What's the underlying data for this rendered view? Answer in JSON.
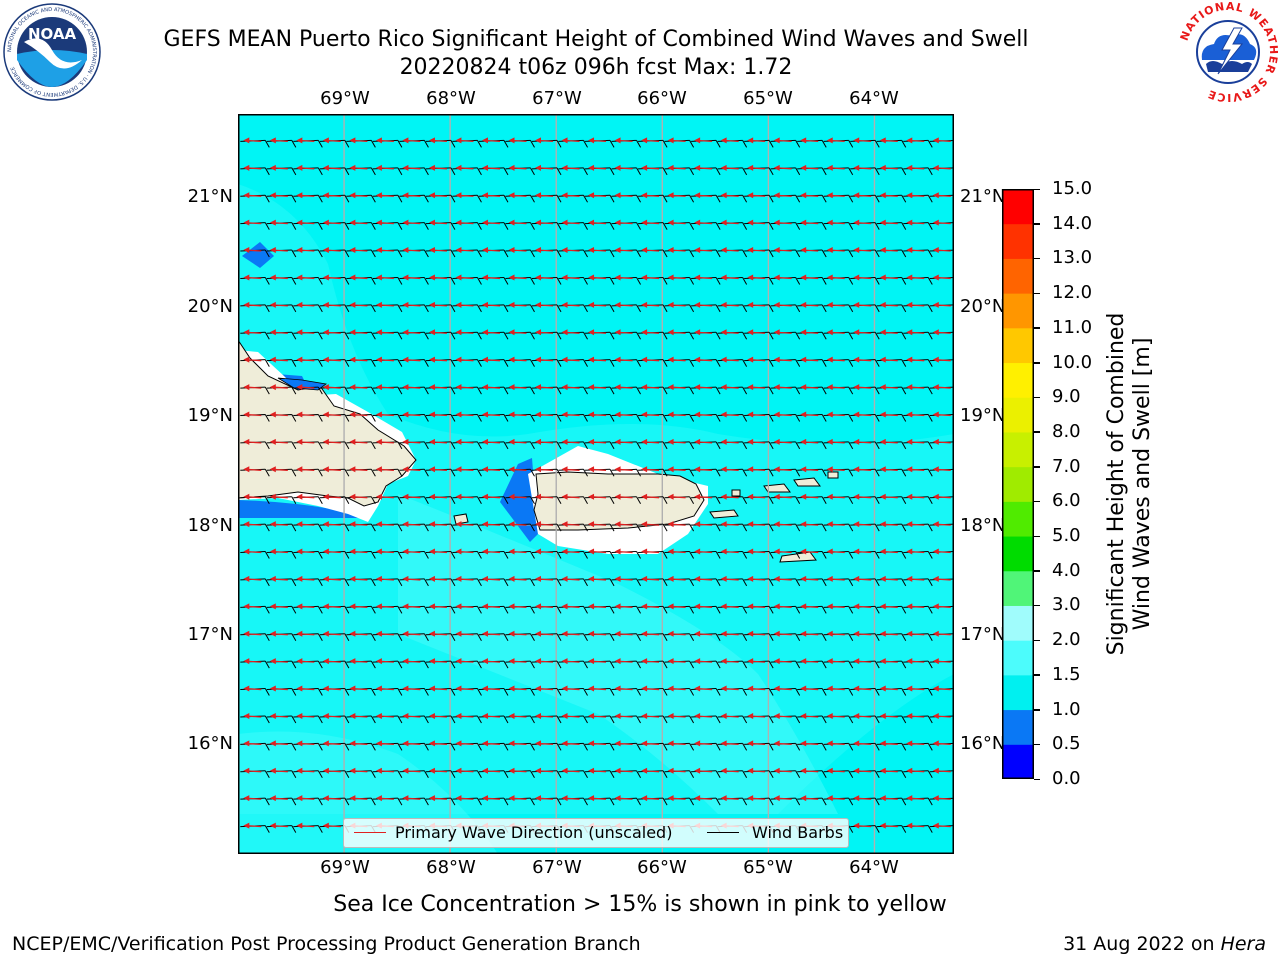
{
  "title": {
    "line1": "GEFS MEAN Puerto Rico Significant Height of Combined Wind Waves and Swell",
    "line2": "20220824 t06z 096h fcst   Max: 1.72"
  },
  "logos": {
    "left": {
      "text": "NOAA",
      "ring_text": "NATIONAL OCEANIC AND ATMOSPHERIC ADMINISTRATION · U.S. DEPARTMENT OF COMMERCE",
      "icon": "noaa-logo-icon"
    },
    "right": {
      "ring_text": "NATIONAL WEATHER SERVICE",
      "icon": "nws-logo-icon"
    }
  },
  "map": {
    "lon_ticks": [
      "69°W",
      "68°W",
      "67°W",
      "66°W",
      "65°W",
      "64°W"
    ],
    "lat_ticks": [
      "21°N",
      "20°N",
      "19°N",
      "18°N",
      "17°N",
      "16°N"
    ],
    "lat_ticks_right": [
      "21°N",
      "20°N",
      "19°N",
      "18°N",
      "17°N",
      "16°N"
    ],
    "lon_values": [
      -69,
      -68,
      -67,
      -66,
      -65,
      -64
    ],
    "lat_values": [
      21,
      20,
      19,
      18,
      17,
      16
    ],
    "extent": {
      "lon_min": -70.0,
      "lon_max": -63.25,
      "lat_min": 15.0,
      "lat_max": 21.75
    },
    "colors": {
      "ocean": "#00f5f5",
      "light": "#4cfcfc",
      "land": "#efedd9",
      "grid": "#b0b0b0",
      "wave_arrow": "#e02020",
      "wind_barb": "#000000"
    }
  },
  "legend": {
    "wave_label": "Primary Wave Direction (unscaled)",
    "wind_label": "Wind Barbs",
    "wave_color": "#e02020",
    "wind_color": "#000000"
  },
  "colorbar": {
    "label_line1": "Significant Height of Combined",
    "label_line2": "Wind Waves and Swell [m]",
    "ticks": [
      "0.0",
      "0.5",
      "1.0",
      "1.5",
      "2.0",
      "3.0",
      "4.0",
      "5.0",
      "6.0",
      "7.0",
      "8.0",
      "9.0",
      "10.0",
      "11.0",
      "12.0",
      "13.0",
      "14.0",
      "15.0"
    ],
    "colors": [
      "#0000ff",
      "#0a78f5",
      "#00f0f0",
      "#4cfcfc",
      "#a0fcfc",
      "#50f578",
      "#00dc00",
      "#50eb00",
      "#a0eb00",
      "#c8f000",
      "#ebf000",
      "#fff000",
      "#ffc800",
      "#ff9600",
      "#ff6400",
      "#ff3200",
      "#ff0000"
    ]
  },
  "footer": {
    "caption": "Sea Ice Concentration > 15% is shown in pink to yellow",
    "left": "NCEP/EMC/Verification Post Processing Product Generation Branch",
    "right_prefix": "31 Aug 2022 on ",
    "right_host": "Hera"
  }
}
